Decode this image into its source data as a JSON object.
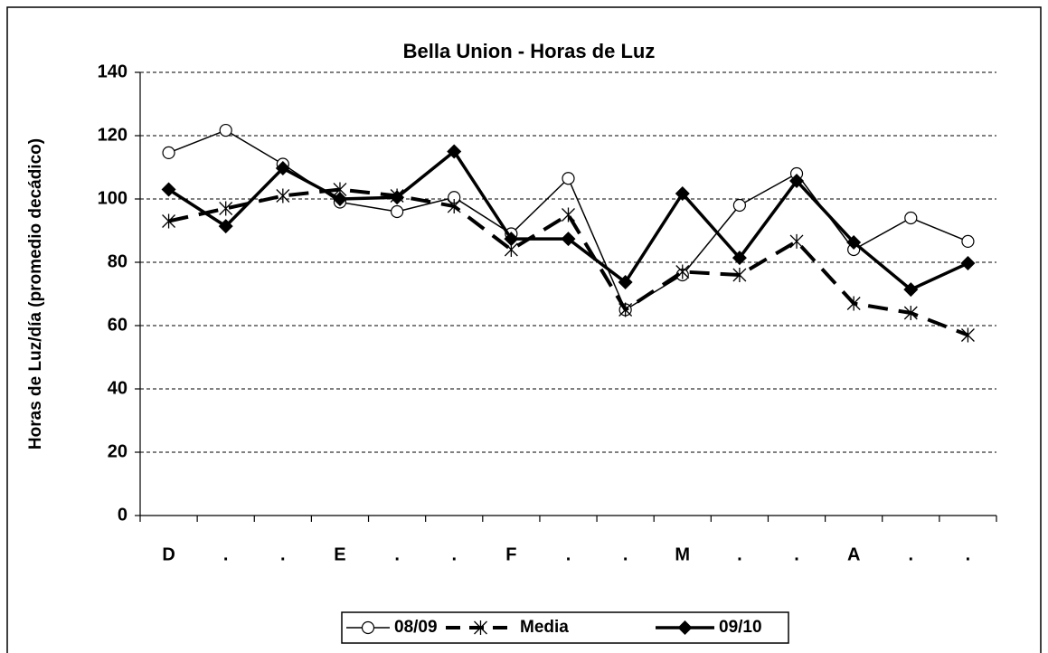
{
  "chart_data": {
    "type": "line",
    "title": "Bella Union - Horas de Luz",
    "y_label": "Horas de Luz/día (promedio decádico)",
    "categories": [
      "D",
      ".",
      ".",
      "E",
      ".",
      ".",
      "F",
      ".",
      ".",
      "M",
      ".",
      ".",
      "A",
      ".",
      "."
    ],
    "series": [
      {
        "name": "08/09",
        "color": "#000000",
        "marker": "circle",
        "dashed": false,
        "width": 1.5,
        "values": [
          114.6,
          121.7,
          111,
          99,
          96,
          100.5,
          89,
          106.5,
          65,
          76,
          98,
          108,
          84,
          94,
          86.6
        ]
      },
      {
        "name": "Media",
        "color": "#000000",
        "marker": "asterisk",
        "dashed": true,
        "width": 4,
        "values": [
          93,
          97,
          101,
          103,
          101,
          97.7,
          84,
          95,
          65,
          77,
          76,
          86.6,
          67,
          64,
          57
        ]
      },
      {
        "name": "09/10",
        "color": "#000000",
        "marker": "diamond",
        "dashed": false,
        "width": 3.5,
        "values": [
          103,
          91.4,
          109.7,
          100,
          100.5,
          115,
          87.4,
          87.4,
          73.7,
          101.7,
          81.4,
          105.7,
          86.3,
          71.4,
          79.7
        ]
      }
    ],
    "ylim": [
      0,
      140
    ],
    "yticks": [
      0,
      20,
      40,
      60,
      80,
      100,
      120,
      140
    ],
    "grid": true,
    "legend": "bottom"
  }
}
